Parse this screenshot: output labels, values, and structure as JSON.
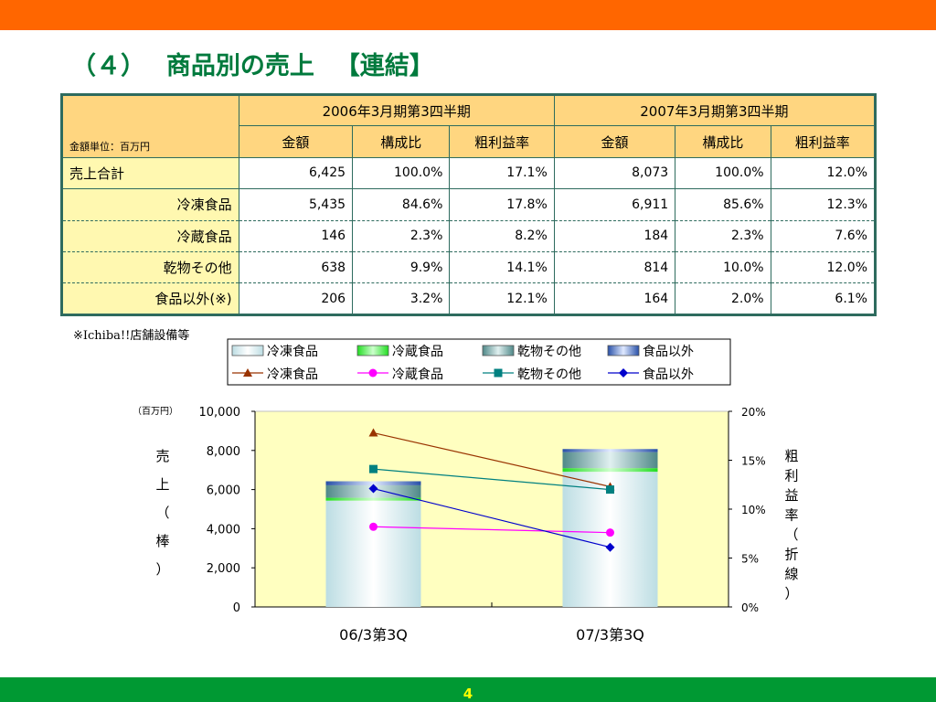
{
  "slide": {
    "title": "（４）　 商品別の売上 　【連結】",
    "page_number": "4",
    "footnote": "※Ichiba!!店舗設備等"
  },
  "colors": {
    "top_band": "#ff6600",
    "bottom_band": "#009933",
    "title": "#007a3d",
    "table_header": "#ffd680",
    "table_label": "#fff8b0",
    "plot_area": "#ffffc0"
  },
  "table": {
    "unit_label": "金額単位：百万円",
    "periods": [
      "2006年3月期第3四半期",
      "2007年3月期第3四半期"
    ],
    "columns": [
      "金額",
      "構成比",
      "粗利益率",
      "金額",
      "構成比",
      "粗利益率"
    ],
    "rows": [
      {
        "label": "売上合計",
        "cells": [
          "6,425",
          "100.0%",
          "17.1%",
          "8,073",
          "100.0%",
          "12.0%"
        ]
      },
      {
        "label": "冷凍食品",
        "cells": [
          "5,435",
          "84.6%",
          "17.8%",
          "6,911",
          "85.6%",
          "12.3%"
        ]
      },
      {
        "label": "冷蔵食品",
        "cells": [
          "146",
          "2.3%",
          "8.2%",
          "184",
          "2.3%",
          "7.6%"
        ]
      },
      {
        "label": "乾物その他",
        "cells": [
          "638",
          "9.9%",
          "14.1%",
          "814",
          "10.0%",
          "12.0%"
        ]
      },
      {
        "label": "食品以外(※)",
        "cells": [
          "206",
          "3.2%",
          "12.1%",
          "164",
          "2.0%",
          "6.1%"
        ]
      }
    ]
  },
  "chart_data": {
    "type": "bar",
    "categories": [
      "06/3第3Q",
      "07/3第3Q"
    ],
    "bar_series": [
      {
        "name": "冷凍食品",
        "values": [
          5435,
          6911
        ],
        "color": "#cfe8ee"
      },
      {
        "name": "冷蔵食品",
        "values": [
          146,
          184
        ],
        "color": "#44ee44"
      },
      {
        "name": "乾物その他",
        "values": [
          638,
          814
        ],
        "color": "#7aa8a8"
      },
      {
        "name": "食品以外",
        "values": [
          206,
          164
        ],
        "color": "#4a7ec8"
      }
    ],
    "line_series": [
      {
        "name": "冷凍食品",
        "values": [
          17.8,
          12.3
        ],
        "color": "#993300",
        "marker": "triangle"
      },
      {
        "name": "冷蔵食品",
        "values": [
          8.2,
          7.6
        ],
        "color": "#ff00ff",
        "marker": "circle"
      },
      {
        "name": "乾物その他",
        "values": [
          14.1,
          12.0
        ],
        "color": "#008080",
        "marker": "square"
      },
      {
        "name": "食品以外",
        "values": [
          12.1,
          6.1
        ],
        "color": "#0000cc",
        "marker": "diamond"
      }
    ],
    "y_left": {
      "label": "売上（棒）",
      "unit": "（百万円）",
      "ticks": [
        "0",
        "2,000",
        "4,000",
        "6,000",
        "8,000",
        "10,000"
      ],
      "range": [
        0,
        10000
      ]
    },
    "y_right": {
      "label": "粗利益率（折線）",
      "ticks": [
        "0%",
        "5%",
        "10%",
        "15%",
        "20%"
      ],
      "range": [
        0,
        20
      ]
    },
    "legend_position": "top",
    "grid": false
  }
}
